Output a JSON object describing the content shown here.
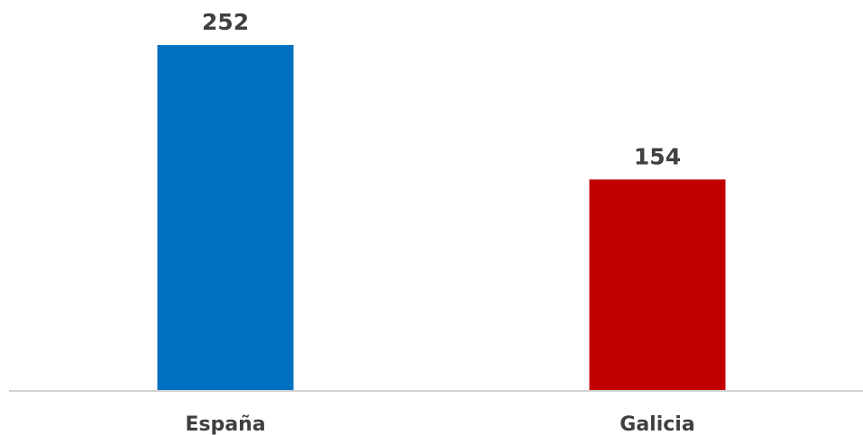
{
  "chart_data": {
    "type": "bar",
    "categories": [
      "España",
      "Galicia"
    ],
    "values": [
      252,
      154
    ],
    "value_labels": [
      "252",
      "154"
    ],
    "bar_colors": [
      "#0070C0",
      "#C00000"
    ],
    "title": "",
    "xlabel": "",
    "ylabel": "",
    "ylim": [
      0,
      252
    ],
    "grid": false,
    "legend": "none"
  }
}
